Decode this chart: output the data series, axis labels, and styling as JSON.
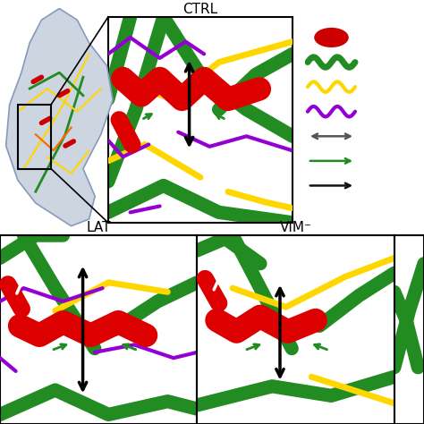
{
  "title_ctrl": "CTRL",
  "title_lat": "LAT",
  "title_vim": "VIM⁻",
  "bg_color": "#ffffff",
  "green": "#228B22",
  "red": "#cc0000",
  "yellow": "#FFD700",
  "purple": "#9400D3",
  "black": "#111111",
  "white": "#ffffff"
}
